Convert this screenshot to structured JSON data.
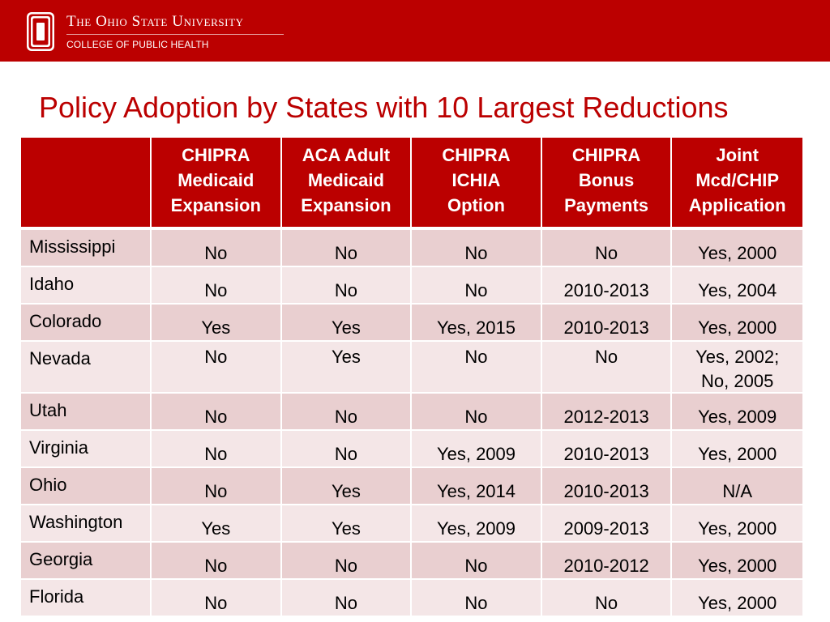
{
  "header": {
    "university": "The Ohio State University",
    "college": "COLLEGE OF PUBLIC HEALTH",
    "brand_color": "#bb0000"
  },
  "title": "Policy Adoption by States with 10 Largest Reductions",
  "table": {
    "columns": [
      [
        "CHIPRA",
        "Medicaid",
        "Expansion"
      ],
      [
        "ACA Adult",
        "Medicaid",
        "Expansion"
      ],
      [
        "CHIPRA",
        "ICHIA",
        "Option"
      ],
      [
        "CHIPRA",
        "Bonus",
        "Payments"
      ],
      [
        "Joint",
        "Mcd/CHIP",
        "Application"
      ]
    ],
    "rows": [
      {
        "state": "Mississippi",
        "values": [
          "No",
          "No",
          "No",
          "No",
          "Yes, 2000"
        ]
      },
      {
        "state": "Idaho",
        "values": [
          "No",
          "No",
          "No",
          "2010-2013",
          "Yes, 2004"
        ]
      },
      {
        "state": "Colorado",
        "values": [
          "Yes",
          "Yes",
          "Yes, 2015",
          "2010-2013",
          "Yes, 2000"
        ]
      },
      {
        "state": "Nevada",
        "values": [
          "No",
          "Yes",
          "No",
          "No",
          "Yes, 2002;"
        ],
        "extra": "No, 2005"
      },
      {
        "state": "Utah",
        "values": [
          "No",
          "No",
          "No",
          "2012-2013",
          "Yes, 2009"
        ]
      },
      {
        "state": "Virginia",
        "values": [
          "No",
          "No",
          "Yes, 2009",
          "2010-2013",
          "Yes, 2000"
        ]
      },
      {
        "state": "Ohio",
        "values": [
          "No",
          "Yes",
          "Yes, 2014",
          "2010-2013",
          "N/A"
        ]
      },
      {
        "state": "Washington",
        "values": [
          "Yes",
          "Yes",
          "Yes, 2009",
          "2009-2013",
          "Yes, 2000"
        ]
      },
      {
        "state": "Georgia",
        "values": [
          "No",
          "No",
          "No",
          "2010-2012",
          "Yes, 2000"
        ]
      },
      {
        "state": "Florida",
        "values": [
          "No",
          "No",
          "No",
          "No",
          "Yes, 2000"
        ]
      }
    ]
  }
}
